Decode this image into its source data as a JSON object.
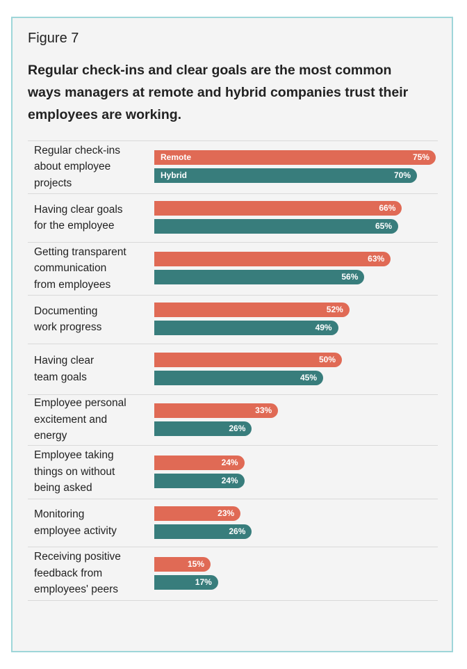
{
  "figure_label": "Figure 7",
  "title": "Regular check-ins and clear goals are the most common ways managers at remote and hybrid companies trust their employees are working.",
  "colors": {
    "remote": "#e06a55",
    "hybrid": "#387d7c",
    "frame_border": "#9ed6d9",
    "background": "#f4f4f4"
  },
  "chart_data": {
    "type": "bar",
    "orientation": "horizontal",
    "unit": "%",
    "xlim": [
      0,
      80
    ],
    "grid": false,
    "legend": "inline labels on first row bars",
    "categories": [
      [
        "Regular check-ins",
        "about employee",
        "projects"
      ],
      [
        "Having clear goals",
        "for the employee"
      ],
      [
        "Getting transparent",
        "communication",
        "from employees"
      ],
      [
        "Documenting",
        "work progress"
      ],
      [
        "Having clear",
        "team goals"
      ],
      [
        "Employee personal",
        "excitement and",
        "energy"
      ],
      [
        "Employee taking",
        "things on without",
        "being asked"
      ],
      [
        "Monitoring",
        "employee activity"
      ],
      [
        "Receiving positive",
        "feedback from",
        "employees' peers"
      ]
    ],
    "series": [
      {
        "name": "Remote",
        "values": [
          75,
          66,
          63,
          52,
          50,
          33,
          24,
          23,
          15
        ],
        "labels": [
          "75%",
          "66%",
          "63%",
          "52%",
          "50%",
          "33%",
          "24%",
          "23%",
          "15%"
        ]
      },
      {
        "name": "Hybrid",
        "values": [
          70,
          65,
          56,
          49,
          45,
          26,
          24,
          26,
          17
        ],
        "labels": [
          "70%",
          "65%",
          "56%",
          "49%",
          "45%",
          "26%",
          "24%",
          "26%",
          "17%"
        ]
      }
    ]
  }
}
